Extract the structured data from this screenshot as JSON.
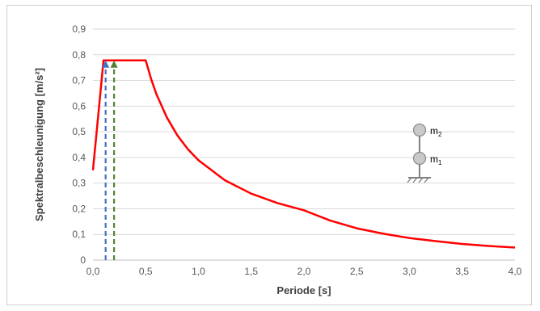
{
  "chart_data": {
    "type": "line",
    "title": "",
    "xlabel": "Periode [s]",
    "ylabel": "Spektralbeschleunigung [m/s²]",
    "xlim": [
      0.0,
      4.0
    ],
    "ylim": [
      0,
      0.9
    ],
    "x_ticks": [
      "0,0",
      "0,5",
      "1,0",
      "1,5",
      "2,0",
      "2,5",
      "3,0",
      "3,5",
      "4,0"
    ],
    "y_ticks": [
      "0",
      "0,1",
      "0,2",
      "0,3",
      "0,4",
      "0,5",
      "0,6",
      "0,7",
      "0,8",
      "0,9"
    ],
    "grid": "horizontal",
    "legend": "none",
    "series": [
      {
        "color": "#ff0000",
        "x": [
          0.0,
          0.1,
          0.5,
          0.55,
          0.6,
          0.7,
          0.8,
          0.9,
          1.0,
          1.25,
          1.5,
          1.75,
          2.0,
          2.25,
          2.5,
          2.75,
          3.0,
          3.25,
          3.5,
          3.75,
          4.0
        ],
        "y": [
          0.35,
          0.778,
          0.778,
          0.707,
          0.648,
          0.556,
          0.486,
          0.432,
          0.389,
          0.311,
          0.259,
          0.222,
          0.194,
          0.154,
          0.124,
          0.103,
          0.086,
          0.074,
          0.063,
          0.055,
          0.049
        ]
      }
    ],
    "markers": [
      {
        "color": "#4472c4",
        "style": "dashed-arrow",
        "x": 0.12,
        "y": 0.778
      },
      {
        "color": "#548235",
        "style": "dashed-arrow",
        "x": 0.2,
        "y": 0.778
      }
    ]
  },
  "diagram": {
    "mass_top": {
      "letter": "m",
      "sub": "2"
    },
    "mass_bottom": {
      "letter": "m",
      "sub": "1"
    }
  }
}
